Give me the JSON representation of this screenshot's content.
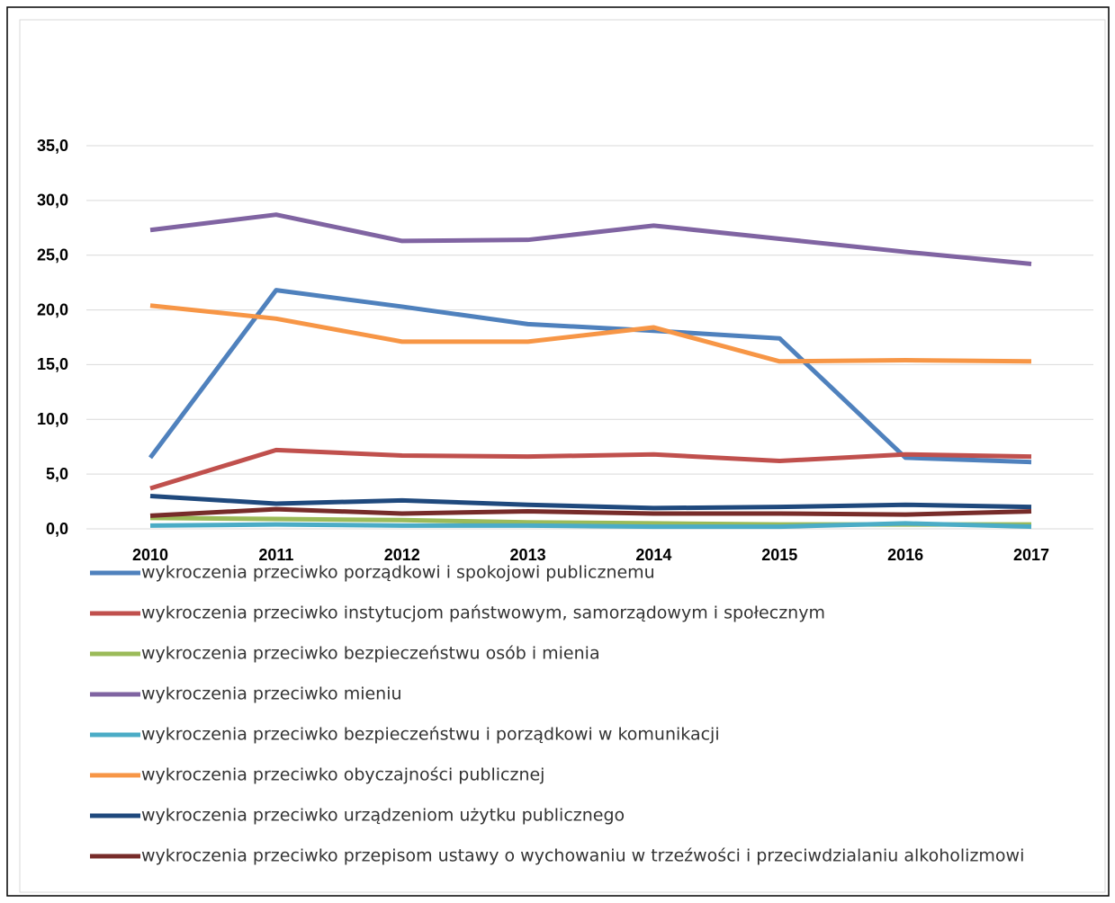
{
  "chart_data": {
    "type": "line",
    "categories": [
      "2010",
      "2011",
      "2012",
      "2013",
      "2014",
      "2015",
      "2016",
      "2017"
    ],
    "series": [
      {
        "name": "wykroczenia przeciwko porządkowi i spokojowi publicznemu",
        "color": "#4f81bd",
        "values": [
          6.5,
          21.8,
          20.3,
          18.7,
          18.1,
          17.4,
          6.5,
          6.1
        ]
      },
      {
        "name": "wykroczenia przeciwko instytucjom państwowym, samorządowym i społecznym",
        "color": "#c0504d",
        "values": [
          3.7,
          7.2,
          6.7,
          6.6,
          6.8,
          6.2,
          6.8,
          6.6
        ]
      },
      {
        "name": "wykroczenia przeciwko bezpieczeństwu osób i mienia",
        "color": "#9bbb59",
        "values": [
          1.0,
          0.9,
          0.8,
          0.6,
          0.5,
          0.4,
          0.4,
          0.4
        ]
      },
      {
        "name": "wykroczenia przeciwko mieniu",
        "color": "#8064a2",
        "values": [
          27.3,
          28.7,
          26.3,
          26.4,
          27.7,
          26.5,
          25.3,
          24.2
        ]
      },
      {
        "name": "wykroczenia przeciwko bezpieczeństwu i porządkowi w komunikacji",
        "color": "#4bacc6",
        "values": [
          0.3,
          0.4,
          0.3,
          0.3,
          0.2,
          0.2,
          0.5,
          0.2
        ]
      },
      {
        "name": "wykroczenia przeciwko obyczajności publicznej",
        "color": "#f79646",
        "values": [
          20.4,
          19.2,
          17.1,
          17.1,
          18.4,
          15.3,
          15.4,
          15.3
        ]
      },
      {
        "name": "wykroczenia przeciwko urządzeniom użytku publicznego",
        "color": "#1f497d",
        "values": [
          3.0,
          2.3,
          2.6,
          2.2,
          1.9,
          2.0,
          2.2,
          2.0
        ]
      },
      {
        "name": "wykroczenia przeciwko przepisom ustawy o wychowaniu w trzeźwości i przeciwdzialaniu alkoholizmowi",
        "color": "#772c2a",
        "values": [
          1.2,
          1.8,
          1.4,
          1.6,
          1.4,
          1.4,
          1.3,
          1.6
        ]
      }
    ],
    "ylim": [
      0,
      35
    ],
    "yticks": [
      {
        "value": 0,
        "label": "0,0"
      },
      {
        "value": 5,
        "label": "5,0"
      },
      {
        "value": 10,
        "label": "10,0"
      },
      {
        "value": 15,
        "label": "15,0"
      },
      {
        "value": 20,
        "label": "20,0"
      },
      {
        "value": 25,
        "label": "25,0"
      },
      {
        "value": 30,
        "label": "30,0"
      },
      {
        "value": 35,
        "label": "35,0"
      }
    ],
    "grid": true
  }
}
